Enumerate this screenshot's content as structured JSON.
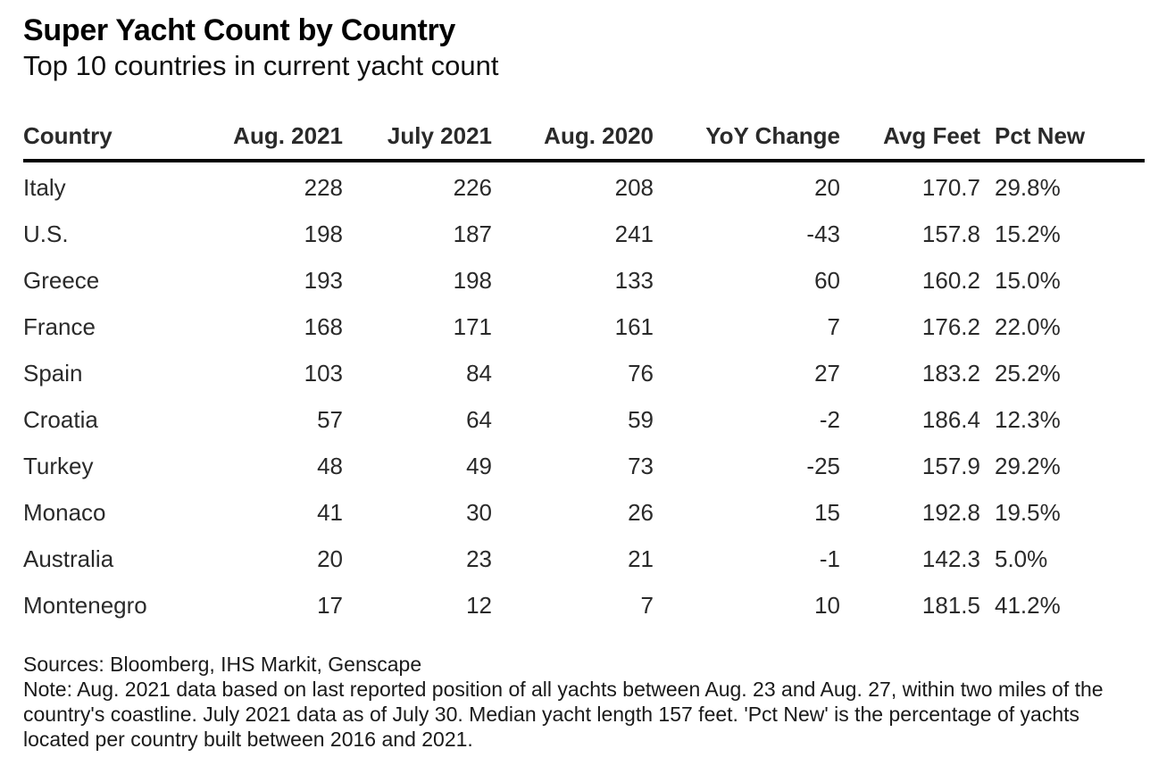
{
  "title": "Super Yacht Count by Country",
  "subtitle": "Top 10 countries in current yacht count",
  "chart_data": {
    "type": "table",
    "title": "Super Yacht Count by Country",
    "subtitle": "Top 10 countries in current yacht count",
    "columns": [
      "Country",
      "Aug. 2021",
      "July 2021",
      "Aug. 2020",
      "YoY Change",
      "Avg Feet",
      "Pct New"
    ],
    "rows": [
      [
        "Italy",
        "228",
        "226",
        "208",
        "20",
        "170.7",
        "29.8%"
      ],
      [
        "U.S.",
        "198",
        "187",
        "241",
        "-43",
        "157.8",
        "15.2%"
      ],
      [
        "Greece",
        "193",
        "198",
        "133",
        "60",
        "160.2",
        "15.0%"
      ],
      [
        "France",
        "168",
        "171",
        "161",
        "7",
        "176.2",
        "22.0%"
      ],
      [
        "Spain",
        "103",
        "84",
        "76",
        "27",
        "183.2",
        "25.2%"
      ],
      [
        "Croatia",
        "57",
        "64",
        "59",
        "-2",
        "186.4",
        "12.3%"
      ],
      [
        "Turkey",
        "48",
        "49",
        "73",
        "-25",
        "157.9",
        "29.2%"
      ],
      [
        "Monaco",
        "41",
        "30",
        "26",
        "15",
        "192.8",
        "19.5%"
      ],
      [
        "Australia",
        "20",
        "23",
        "21",
        "-1",
        "142.3",
        "5.0%"
      ],
      [
        "Montenegro",
        "17",
        "12",
        "7",
        "10",
        "181.5",
        "41.2%"
      ]
    ]
  },
  "footer": {
    "sources": "Sources: Bloomberg, IHS Markit, Genscape",
    "note": "Note: Aug. 2021 data based on last reported position of all yachts between Aug. 23 and Aug. 27, within two miles of the country's coastline. July 2021 data as of July 30. Median yacht length 157 feet. 'Pct New' is the percentage of yachts located per country built between 2016 and 2021."
  }
}
